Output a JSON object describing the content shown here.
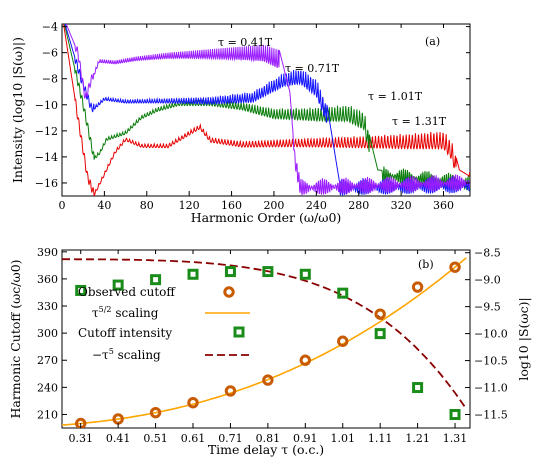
{
  "chart_data": [
    {
      "panel": "(a)",
      "type": "line",
      "xlabel": "Harmonic Order (ω/ω0)",
      "ylabel": "Intensity (log10 |S(ω)|)",
      "xlim": [
        0,
        385
      ],
      "ylim": [
        -17,
        -3.8
      ],
      "xticks": [
        0,
        40,
        80,
        120,
        160,
        200,
        240,
        280,
        320,
        360
      ],
      "yticks": [
        -16,
        -14,
        -12,
        -10,
        -8,
        -6,
        -4
      ],
      "tick_labels_x": [
        "0",
        "40",
        "80",
        "120",
        "160",
        "200",
        "240",
        "280",
        "320",
        "360"
      ],
      "tick_labels_y": [
        "−16",
        "−14",
        "−12",
        "−10",
        "−8",
        "−6",
        "−4"
      ],
      "series": [
        {
          "name": "τ = 0.41T",
          "color": "#9b1eff",
          "plateau": -5.5,
          "cutoff": 205,
          "points": [
            [
              0,
              -3
            ],
            [
              15,
              -6
            ],
            [
              22,
              -9.5
            ],
            [
              28,
              -8
            ],
            [
              35,
              -6.5
            ],
            [
              50,
              -6.6
            ],
            [
              70,
              -6.3
            ],
            [
              100,
              -6
            ],
            [
              130,
              -5.8
            ],
            [
              160,
              -5.6
            ],
            [
              190,
              -5.4
            ],
            [
              205,
              -5.8
            ],
            [
              215,
              -9
            ],
            [
              220,
              -14
            ],
            [
              225,
              -16
            ],
            [
              385,
              -15.6
            ]
          ]
        },
        {
          "name": "τ = 0.71T",
          "color": "#1414ff",
          "plateau": -9.5,
          "cutoff": 250,
          "points": [
            [
              0,
              -3
            ],
            [
              18,
              -8
            ],
            [
              28,
              -10.3
            ],
            [
              40,
              -9.4
            ],
            [
              60,
              -9.6
            ],
            [
              100,
              -9.5
            ],
            [
              140,
              -9.4
            ],
            [
              180,
              -9
            ],
            [
              210,
              -7.5
            ],
            [
              225,
              -7.2
            ],
            [
              240,
              -8
            ],
            [
              250,
              -10
            ],
            [
              258,
              -14
            ],
            [
              262,
              -16
            ],
            [
              385,
              -15.8
            ]
          ]
        },
        {
          "name": "τ = 1.01T",
          "color": "#0a7d0a",
          "plateau": -11,
          "cutoff": 290,
          "points": [
            [
              0,
              -3
            ],
            [
              20,
              -10
            ],
            [
              30,
              -14
            ],
            [
              36,
              -13.5
            ],
            [
              42,
              -12.5
            ],
            [
              60,
              -12
            ],
            [
              75,
              -10.8
            ],
            [
              90,
              -10.2
            ],
            [
              110,
              -9.7
            ],
            [
              140,
              -9.6
            ],
            [
              170,
              -9.8
            ],
            [
              200,
              -10.3
            ],
            [
              240,
              -10.2
            ],
            [
              270,
              -10
            ],
            [
              285,
              -10.5
            ],
            [
              292,
              -13
            ],
            [
              298,
              -15
            ],
            [
              385,
              -15.7
            ]
          ]
        },
        {
          "name": "τ = 1.31T",
          "color": "#e60000",
          "plateau": -13,
          "cutoff": 372,
          "points": [
            [
              0,
              -3
            ],
            [
              15,
              -11
            ],
            [
              24,
              -15.5
            ],
            [
              30,
              -16.8
            ],
            [
              38,
              -15.5
            ],
            [
              50,
              -13.5
            ],
            [
              60,
              -12.5
            ],
            [
              75,
              -13
            ],
            [
              100,
              -13
            ],
            [
              130,
              -11.5
            ],
            [
              140,
              -12.5
            ],
            [
              170,
              -12.8
            ],
            [
              220,
              -12.6
            ],
            [
              280,
              -12.4
            ],
            [
              330,
              -12.2
            ],
            [
              360,
              -12
            ],
            [
              368,
              -12.8
            ],
            [
              375,
              -15
            ],
            [
              385,
              -15.5
            ]
          ]
        }
      ],
      "annotations": [
        "τ = 0.41T",
        "τ = 0.71T",
        "τ = 1.01T",
        "τ = 1.31T",
        "(a)"
      ]
    },
    {
      "panel": "(b)",
      "type": "line",
      "xlabel": "Time delay τ (o.c.)",
      "ylabel": "Harmonic Cutoff (ωc/ω0)",
      "ylabel_right": "log10 |S(ωc)|",
      "xlim": [
        0.26,
        1.35
      ],
      "ylim": [
        195,
        392
      ],
      "ylim_right": [
        -11.75,
        -8.45
      ],
      "categories": [
        "0.31",
        "0.41",
        "0.51",
        "0.61",
        "0.71",
        "0.81",
        "0.91",
        "1.01",
        "1.11",
        "1.21",
        "1.31"
      ],
      "yticks": [
        210,
        240,
        270,
        300,
        330,
        360,
        390
      ],
      "tick_labels_y": [
        "210",
        "240",
        "270",
        "300",
        "330",
        "360",
        "390"
      ],
      "yticks_right": [
        -11.5,
        -11,
        -10.5,
        -10,
        -9.5,
        -9,
        -8.5
      ],
      "tick_labels_y_right": [
        "−11.5",
        "−11.0",
        "−10.5",
        "−10.0",
        "−9.5",
        "−9.0",
        "−8.5"
      ],
      "x": [
        0.31,
        0.41,
        0.51,
        0.61,
        0.71,
        0.81,
        0.91,
        1.01,
        1.11,
        1.21,
        1.31
      ],
      "series": [
        {
          "name": "Observed cutoff",
          "marker": "circle",
          "color": "#c85a00",
          "axis": "left",
          "values": [
            200,
            205,
            212,
            223,
            236,
            248,
            270,
            291,
            321,
            351,
            373
          ]
        },
        {
          "name": "τ^5/2 scaling",
          "line": "solid",
          "color": "#ffa500",
          "axis": "left",
          "values": [
            200,
            205,
            212,
            223,
            236,
            248,
            270,
            291,
            321,
            351,
            373
          ]
        },
        {
          "name": "Cutoff intensity",
          "marker": "square",
          "color": "#1a8c1a",
          "axis": "right",
          "values": [
            -9.2,
            -9.1,
            -9.0,
            -8.9,
            -8.85,
            -8.85,
            -8.9,
            -9.25,
            -10.0,
            -11.0,
            -11.5
          ]
        },
        {
          "name": "−τ^5 scaling",
          "line": "dashed",
          "color": "#8b0000",
          "axis": "right",
          "values": [
            -8.63,
            -8.63,
            -8.65,
            -8.68,
            -8.75,
            -8.85,
            -9.03,
            -9.3,
            -9.7,
            -10.3,
            -11.1
          ]
        }
      ],
      "annotations": [
        "(b)"
      ]
    }
  ]
}
